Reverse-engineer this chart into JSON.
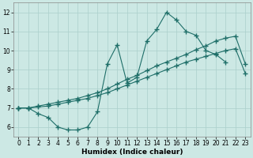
{
  "xlabel": "Humidex (Indice chaleur)",
  "xlim": [
    -0.5,
    23.5
  ],
  "ylim": [
    5.5,
    12.5
  ],
  "xticks": [
    0,
    1,
    2,
    3,
    4,
    5,
    6,
    7,
    8,
    9,
    10,
    11,
    12,
    13,
    14,
    15,
    16,
    17,
    18,
    19,
    20,
    21,
    22,
    23
  ],
  "yticks": [
    6,
    7,
    8,
    9,
    10,
    11,
    12
  ],
  "bg_color": "#cce8e4",
  "grid_color": "#aacfcb",
  "line_color": "#1e6e68",
  "line1_x": [
    0,
    1,
    2,
    3,
    4,
    5,
    6,
    7,
    8,
    9,
    10,
    11,
    12,
    13,
    14,
    15,
    16,
    17,
    18,
    19,
    20,
    21
  ],
  "line1_y": [
    7.0,
    7.0,
    6.7,
    6.5,
    6.0,
    5.85,
    5.85,
    6.0,
    6.8,
    9.3,
    10.3,
    8.3,
    8.6,
    10.5,
    11.1,
    12.0,
    11.6,
    11.0,
    10.8,
    10.0,
    9.8,
    9.4
  ],
  "line2_x": [
    0,
    1,
    2,
    3,
    4,
    5,
    6,
    7,
    8,
    9,
    10,
    11,
    12,
    13,
    14,
    15,
    16,
    17,
    18,
    19,
    20,
    21,
    22,
    23
  ],
  "line2_y": [
    7.0,
    7.0,
    7.05,
    7.1,
    7.2,
    7.3,
    7.4,
    7.5,
    7.65,
    7.8,
    8.0,
    8.2,
    8.4,
    8.6,
    8.8,
    9.0,
    9.2,
    9.4,
    9.55,
    9.7,
    9.85,
    10.0,
    10.1,
    8.8
  ],
  "line3_x": [
    0,
    1,
    2,
    3,
    4,
    5,
    6,
    7,
    8,
    9,
    10,
    11,
    12,
    13,
    14,
    15,
    16,
    17,
    18,
    19,
    20,
    21,
    22,
    23
  ],
  "line3_y": [
    7.0,
    7.0,
    7.1,
    7.2,
    7.3,
    7.4,
    7.5,
    7.65,
    7.8,
    8.0,
    8.25,
    8.5,
    8.7,
    8.95,
    9.2,
    9.4,
    9.6,
    9.8,
    10.05,
    10.25,
    10.5,
    10.65,
    10.75,
    9.3
  ],
  "marker": "+",
  "markersize": 4,
  "linewidth": 0.8,
  "tick_fontsize": 5.5,
  "xlabel_fontsize": 6.5
}
